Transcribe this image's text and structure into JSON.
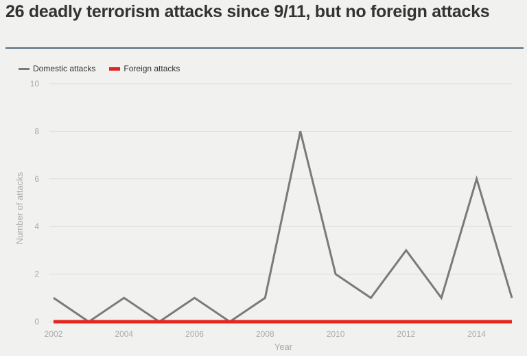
{
  "title": "26 deadly terrorism attacks since 9/11, but no foreign attacks",
  "colors": {
    "background": "#f1f1ef",
    "title_rule": "#566c78",
    "grid": "#dcdcdc",
    "domestic": "#7a7a7a",
    "foreign": "#e4261f"
  },
  "chart_data": {
    "type": "line",
    "title": "26 deadly terrorism attacks since 9/11, but no foreign attacks",
    "xlabel": "Year",
    "ylabel": "Number of attacks",
    "xlim": [
      2002,
      2015
    ],
    "ylim": [
      0,
      10
    ],
    "x_ticks": [
      2002,
      2004,
      2006,
      2008,
      2010,
      2012,
      2014
    ],
    "y_ticks": [
      0,
      2,
      4,
      6,
      8,
      10
    ],
    "grid": true,
    "legend_position": "top-left",
    "x": [
      2002,
      2003,
      2004,
      2005,
      2006,
      2007,
      2008,
      2009,
      2010,
      2011,
      2012,
      2013,
      2014,
      2015
    ],
    "series": [
      {
        "name": "Domestic attacks",
        "color": "#7a7a7a",
        "values": [
          1,
          0,
          1,
          0,
          1,
          0,
          1,
          8,
          2,
          1,
          3,
          1,
          6,
          1
        ]
      },
      {
        "name": "Foreign attacks",
        "color": "#e4261f",
        "values": [
          0,
          0,
          0,
          0,
          0,
          0,
          0,
          0,
          0,
          0,
          0,
          0,
          0,
          0
        ]
      }
    ]
  }
}
